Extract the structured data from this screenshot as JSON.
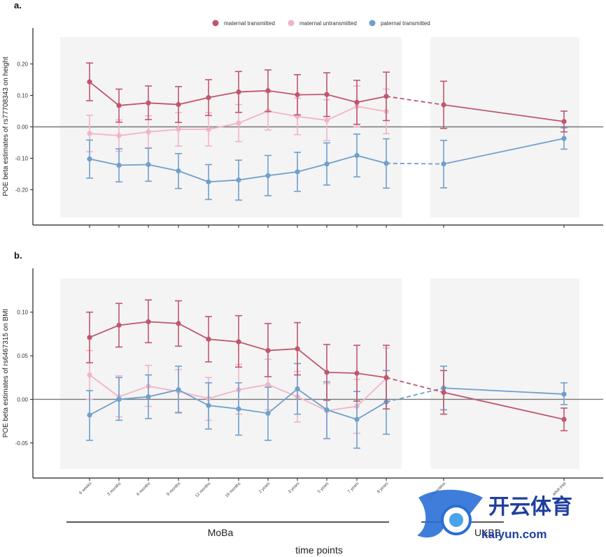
{
  "legend": [
    {
      "label": "maternal transmitted",
      "color": "#c0566e"
    },
    {
      "label": "maternal untransmitted",
      "color": "#f2b4c7"
    },
    {
      "label": "paternal transmitted",
      "color": "#6f9fcd"
    }
  ],
  "x_title": "time points",
  "groups": [
    {
      "label": "MoBa"
    },
    {
      "label": "UKBB"
    }
  ],
  "x_ticks": [
    "6 weeks",
    "3 months",
    "6 months",
    "8 months",
    "12 months",
    "16 months",
    "2 years",
    "3 years",
    "5 years",
    "7 years",
    "8 years",
    "comparative",
    "adult trait"
  ],
  "watermark": {
    "cn": "开云体育",
    "en": "kaiyun.com"
  },
  "chart_data": [
    {
      "type": "line",
      "panel_label": "a.",
      "ylabel": "POE beta estimates of rs77708343 on height",
      "ylim": [
        -0.27,
        0.27
      ],
      "yticks": [
        -0.2,
        -0.1,
        0.0,
        0.1,
        0.2
      ],
      "ytick_labels": [
        "-0.20",
        "-0.10",
        "0.00",
        "0.10",
        "0.20"
      ],
      "reference_line": 0,
      "series": [
        {
          "name": "maternal transmitted",
          "color": "#c0566e",
          "values": [
            0.143,
            0.068,
            0.076,
            0.071,
            0.093,
            0.111,
            0.115,
            0.102,
            0.103,
            0.078,
            0.097,
            0.07,
            0.017
          ],
          "lower": [
            0.083,
            0.015,
            0.023,
            0.014,
            0.036,
            0.046,
            0.049,
            0.038,
            0.033,
            0.008,
            0.02,
            -0.005,
            -0.016
          ],
          "upper": [
            0.203,
            0.12,
            0.13,
            0.128,
            0.15,
            0.176,
            0.181,
            0.166,
            0.172,
            0.148,
            0.174,
            0.145,
            0.05
          ]
        },
        {
          "name": "maternal untransmitted",
          "color": "#f2b4c7",
          "values": [
            -0.021,
            -0.028,
            -0.016,
            -0.008,
            -0.008,
            0.012,
            0.05,
            0.033,
            0.021,
            0.065,
            0.049
          ],
          "lower": [
            -0.079,
            -0.078,
            -0.067,
            -0.061,
            -0.061,
            -0.047,
            -0.01,
            -0.025,
            -0.044,
            0.0,
            -0.022
          ],
          "upper": [
            0.037,
            0.022,
            0.035,
            0.045,
            0.045,
            0.071,
            0.11,
            0.091,
            0.086,
            0.13,
            0.12
          ]
        },
        {
          "name": "paternal transmitted",
          "color": "#6f9fcd",
          "values": [
            -0.102,
            -0.122,
            -0.12,
            -0.14,
            -0.175,
            -0.169,
            -0.155,
            -0.143,
            -0.118,
            -0.091,
            -0.116,
            -0.118,
            -0.037
          ],
          "lower": [
            -0.163,
            -0.175,
            -0.173,
            -0.196,
            -0.231,
            -0.233,
            -0.219,
            -0.205,
            -0.185,
            -0.159,
            -0.195,
            -0.194,
            -0.071
          ],
          "upper": [
            -0.042,
            -0.07,
            -0.068,
            -0.085,
            -0.12,
            -0.106,
            -0.091,
            -0.081,
            -0.051,
            -0.023,
            -0.038,
            -0.043,
            -0.003
          ]
        }
      ]
    },
    {
      "type": "line",
      "panel_label": "b.",
      "ylabel": "POE beta estimates of rs6467315 on BMI",
      "ylim": [
        -0.075,
        0.135
      ],
      "yticks": [
        -0.05,
        0.0,
        0.05,
        0.1
      ],
      "ytick_labels": [
        "-0.05",
        "0.00",
        "0.05",
        "0.10"
      ],
      "reference_line": 0,
      "series": [
        {
          "name": "maternal transmitted",
          "color": "#c0566e",
          "values": [
            0.071,
            0.085,
            0.089,
            0.087,
            0.069,
            0.066,
            0.056,
            0.058,
            0.031,
            0.03,
            0.025,
            0.008,
            -0.023
          ],
          "lower": [
            0.042,
            0.06,
            0.065,
            0.061,
            0.043,
            0.037,
            0.026,
            0.028,
            -0.001,
            -0.002,
            -0.011,
            -0.017,
            -0.036
          ],
          "upper": [
            0.1,
            0.11,
            0.114,
            0.113,
            0.095,
            0.096,
            0.087,
            0.088,
            0.063,
            0.062,
            0.062,
            0.033,
            -0.01
          ]
        },
        {
          "name": "maternal untransmitted",
          "color": "#f2b4c7",
          "values": [
            0.028,
            0.003,
            0.015,
            0.009,
            0.001,
            0.011,
            0.017,
            0.003,
            -0.013,
            -0.008,
            0.024
          ],
          "lower": [
            0.0,
            -0.02,
            -0.008,
            -0.016,
            -0.024,
            -0.017,
            -0.012,
            -0.026,
            -0.045,
            -0.039,
            -0.011
          ],
          "upper": [
            0.056,
            0.027,
            0.039,
            0.034,
            0.025,
            0.04,
            0.046,
            0.032,
            0.018,
            0.023,
            0.059
          ]
        },
        {
          "name": "paternal transmitted",
          "color": "#6f9fcd",
          "values": [
            -0.018,
            0.0,
            0.003,
            0.011,
            -0.007,
            -0.011,
            -0.016,
            0.012,
            -0.012,
            -0.023,
            -0.003,
            0.013,
            0.006
          ],
          "lower": [
            -0.047,
            -0.024,
            -0.022,
            -0.015,
            -0.034,
            -0.041,
            -0.047,
            -0.017,
            -0.045,
            -0.056,
            -0.04,
            -0.012,
            -0.006
          ],
          "upper": [
            0.01,
            0.025,
            0.028,
            0.038,
            0.019,
            0.019,
            0.014,
            0.041,
            0.02,
            0.009,
            0.033,
            0.038,
            0.019
          ]
        }
      ]
    }
  ]
}
